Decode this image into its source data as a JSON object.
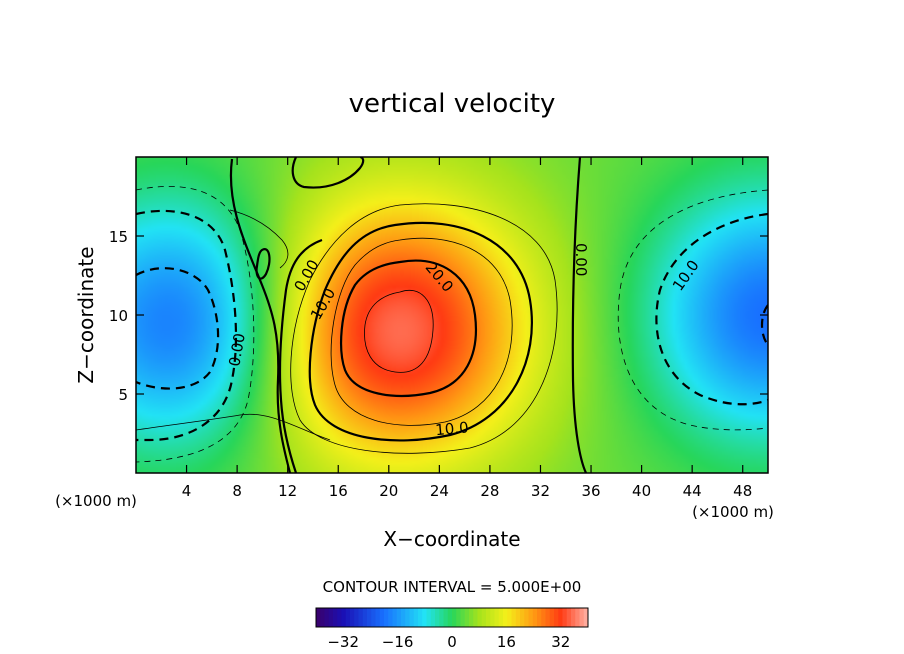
{
  "chart_data": {
    "type": "contour",
    "title": "vertical velocity",
    "xlabel": "X−coordinate",
    "ylabel": "Z−coordinate",
    "x_unit_left": "(×1000 m)",
    "x_unit_right": "(×1000 m)",
    "xlim": [
      0,
      50
    ],
    "ylim": [
      0,
      20
    ],
    "x_ticks": [
      4,
      8,
      12,
      16,
      20,
      24,
      28,
      32,
      36,
      40,
      44,
      48
    ],
    "y_ticks": [
      5,
      10,
      15
    ],
    "contour_interval_text": "CONTOUR INTERVAL = 5.000E+00",
    "contour_labels": [
      {
        "text": "0.00",
        "x": 13.5,
        "z": 12.5,
        "angle": -60
      },
      {
        "text": "10.0",
        "x": 14.8,
        "z": 10.7,
        "angle": -60
      },
      {
        "text": "20.0",
        "x": 24.0,
        "z": 12.4,
        "angle": 50
      },
      {
        "text": "10.0",
        "x": 25.0,
        "z": 2.8,
        "angle": -5
      },
      {
        "text": "0.00",
        "x": 35.2,
        "z": 13.5,
        "angle": 90
      },
      {
        "text": "10.0",
        "x": 43.5,
        "z": 12.5,
        "angle": -55
      },
      {
        "text": "0.00",
        "x": 8.0,
        "z": 7.8,
        "angle": -80
      }
    ],
    "field_features": [
      {
        "sign": "positive",
        "peak_value": 32,
        "center_x": 20.5,
        "center_z": 9.0
      },
      {
        "sign": "negative",
        "peak_value": -24,
        "center_x": 3.5,
        "center_z": 9.5
      },
      {
        "sign": "negative",
        "peak_value": -24,
        "center_x": 50.0,
        "center_z": 10.0
      }
    ],
    "colorbar": {
      "min": -40,
      "max": 40,
      "tick_values": [
        -32,
        -16,
        0,
        16,
        32
      ],
      "tick_labels": [
        "−32",
        "−16",
        "0",
        "16",
        "32"
      ]
    }
  }
}
